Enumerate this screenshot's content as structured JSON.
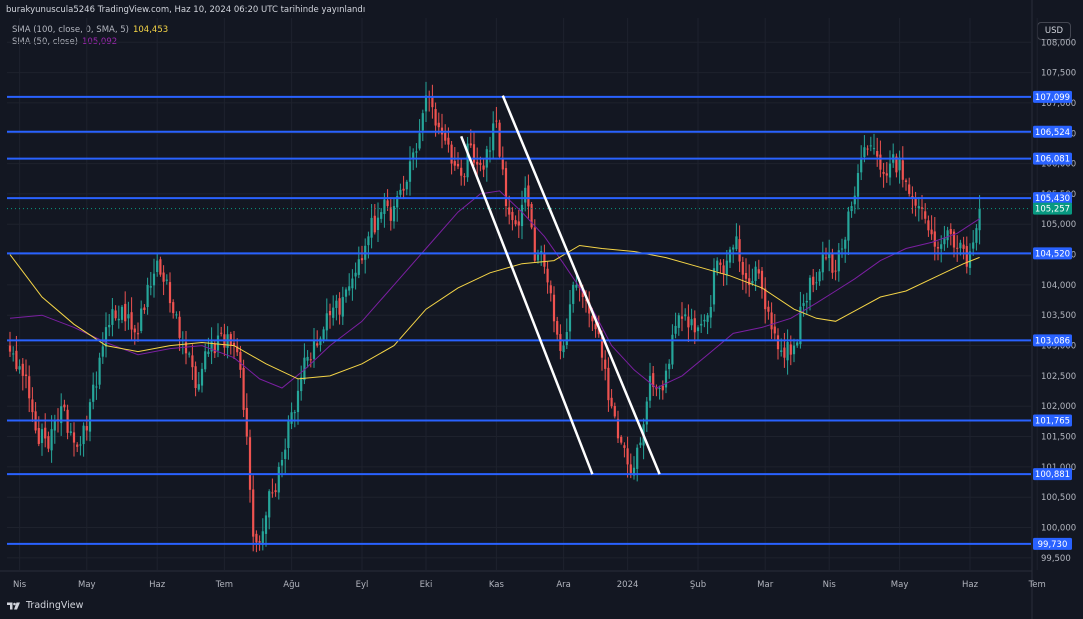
{
  "header": {
    "publish_line": "burakyunuscula5246 TradingView.com, Haz 10, 2024 06:20 UTC tarihinde yayınlandı"
  },
  "legend": {
    "sma100_label": "SMA (100, close, 0, SMA, 5)",
    "sma100_value": "104,453",
    "sma50_label": "SMA (50, close)",
    "sma50_value": "105,092"
  },
  "currency": "USD",
  "brand": "TradingView",
  "colors": {
    "background": "#131722",
    "up": "#26a69a",
    "down": "#ef5350",
    "level_line": "#2962ff",
    "level_tag": "#2962ff",
    "last_price_tag": "#089981",
    "sma100": "#f5d547",
    "sma50": "#7b1fa2",
    "trend_lines": "#ffffff"
  },
  "chart_data": {
    "type": "candlestick",
    "symbol_unit": "USD",
    "ylim": [
      99.3,
      108.4
    ],
    "y_ticks": [
      {
        "v": 99.5,
        "label": "99,500"
      },
      {
        "v": 100.0,
        "label": "100,000"
      },
      {
        "v": 100.5,
        "label": "100,500"
      },
      {
        "v": 101.0,
        "label": "101,000"
      },
      {
        "v": 101.5,
        "label": "101,500"
      },
      {
        "v": 102.0,
        "label": "102,000"
      },
      {
        "v": 102.5,
        "label": "102,500"
      },
      {
        "v": 103.0,
        "label": "103,000"
      },
      {
        "v": 103.5,
        "label": "103,500"
      },
      {
        "v": 104.0,
        "label": "104,000"
      },
      {
        "v": 104.5,
        "label": "104,500"
      },
      {
        "v": 105.0,
        "label": "105,000"
      },
      {
        "v": 105.5,
        "label": "105,500"
      },
      {
        "v": 106.0,
        "label": "106,000"
      },
      {
        "v": 106.5,
        "label": "106,500"
      },
      {
        "v": 107.0,
        "label": "107,000"
      },
      {
        "v": 107.5,
        "label": "107,500"
      },
      {
        "v": 108.0,
        "label": "108,000"
      }
    ],
    "x_labels": [
      {
        "label": "Nis",
        "bar": 3
      },
      {
        "label": "May",
        "bar": 24
      },
      {
        "label": "Haz",
        "bar": 46
      },
      {
        "label": "Tem",
        "bar": 67
      },
      {
        "label": "Ağu",
        "bar": 88
      },
      {
        "label": "Eyl",
        "bar": 110
      },
      {
        "label": "Eki",
        "bar": 130
      },
      {
        "label": "Kas",
        "bar": 152
      },
      {
        "label": "Ara",
        "bar": 173
      },
      {
        "label": "2024",
        "bar": 193
      },
      {
        "label": "Şub",
        "bar": 215
      },
      {
        "label": "Mar",
        "bar": 236
      },
      {
        "label": "Nis",
        "bar": 256
      },
      {
        "label": "May",
        "bar": 278
      },
      {
        "label": "Haz",
        "bar": 300
      },
      {
        "label": "Tem",
        "bar": 321
      }
    ],
    "levels": [
      {
        "value": 107.099,
        "label": "107,099"
      },
      {
        "value": 106.524,
        "label": "106,524"
      },
      {
        "value": 106.081,
        "label": "106,081"
      },
      {
        "value": 105.43,
        "label": "105,430"
      },
      {
        "value": 104.52,
        "label": "104,520"
      },
      {
        "value": 103.086,
        "label": "103,086"
      },
      {
        "value": 101.765,
        "label": "101,765"
      },
      {
        "value": 100.881,
        "label": "100,881"
      },
      {
        "value": 99.73,
        "label": "99,730"
      }
    ],
    "last_price": {
      "value": 105.257,
      "label": "105,257"
    },
    "trend_lines": [
      {
        "from": {
          "bar": 141,
          "price": 106.45
        },
        "to": {
          "bar": 182,
          "price": 100.88
        }
      },
      {
        "from": {
          "bar": 154,
          "price": 107.12
        },
        "to": {
          "bar": 203,
          "price": 100.88
        }
      }
    ],
    "anchors": [
      [
        0,
        102.9
      ],
      [
        4,
        102.5
      ],
      [
        8,
        101.6
      ],
      [
        12,
        101.3
      ],
      [
        16,
        102.0
      ],
      [
        20,
        101.4
      ],
      [
        24,
        101.6
      ],
      [
        28,
        102.8
      ],
      [
        32,
        103.6
      ],
      [
        36,
        103.4
      ],
      [
        40,
        103.2
      ],
      [
        43,
        104.0
      ],
      [
        46,
        104.4
      ],
      [
        50,
        103.7
      ],
      [
        54,
        103.1
      ],
      [
        58,
        102.3
      ],
      [
        62,
        102.9
      ],
      [
        66,
        103.2
      ],
      [
        70,
        103.0
      ],
      [
        72,
        102.6
      ],
      [
        74,
        101.5
      ],
      [
        76,
        99.85
      ],
      [
        78,
        99.75
      ],
      [
        80,
        100.2
      ],
      [
        84,
        101.0
      ],
      [
        88,
        101.9
      ],
      [
        92,
        102.8
      ],
      [
        96,
        103.0
      ],
      [
        100,
        103.5
      ],
      [
        104,
        103.8
      ],
      [
        108,
        104.2
      ],
      [
        112,
        104.8
      ],
      [
        116,
        105.2
      ],
      [
        120,
        105.3
      ],
      [
        124,
        105.7
      ],
      [
        128,
        106.5
      ],
      [
        131,
        107.1
      ],
      [
        134,
        106.6
      ],
      [
        138,
        106.0
      ],
      [
        141,
        105.8
      ],
      [
        144,
        106.3
      ],
      [
        148,
        105.9
      ],
      [
        152,
        106.7
      ],
      [
        155,
        105.3
      ],
      [
        158,
        105.0
      ],
      [
        161,
        105.6
      ],
      [
        164,
        104.4
      ],
      [
        167,
        104.3
      ],
      [
        170,
        103.4
      ],
      [
        173,
        103.0
      ],
      [
        176,
        104.0
      ],
      [
        179,
        103.8
      ],
      [
        182,
        103.4
      ],
      [
        185,
        102.8
      ],
      [
        188,
        102.0
      ],
      [
        191,
        101.4
      ],
      [
        194,
        100.9
      ],
      [
        197,
        101.4
      ],
      [
        200,
        102.5
      ],
      [
        203,
        102.3
      ],
      [
        206,
        102.7
      ],
      [
        209,
        103.5
      ],
      [
        212,
        103.3
      ],
      [
        215,
        103.3
      ],
      [
        218,
        103.5
      ],
      [
        221,
        104.4
      ],
      [
        224,
        104.4
      ],
      [
        227,
        104.8
      ],
      [
        230,
        104.1
      ],
      [
        233,
        104.3
      ],
      [
        236,
        103.6
      ],
      [
        239,
        103.2
      ],
      [
        242,
        102.8
      ],
      [
        245,
        103.0
      ],
      [
        248,
        103.7
      ],
      [
        251,
        104.0
      ],
      [
        254,
        104.5
      ],
      [
        257,
        104.2
      ],
      [
        260,
        104.6
      ],
      [
        263,
        105.3
      ],
      [
        266,
        106.1
      ],
      [
        269,
        106.3
      ],
      [
        272,
        105.9
      ],
      [
        275,
        106.0
      ],
      [
        278,
        106.1
      ],
      [
        281,
        105.5
      ],
      [
        284,
        105.3
      ],
      [
        287,
        104.9
      ],
      [
        290,
        104.6
      ],
      [
        293,
        104.9
      ],
      [
        296,
        104.6
      ],
      [
        299,
        104.3
      ],
      [
        301,
        104.7
      ],
      [
        303,
        105.26
      ]
    ],
    "sma100_path": [
      [
        0,
        104.5
      ],
      [
        10,
        103.8
      ],
      [
        20,
        103.35
      ],
      [
        30,
        103.0
      ],
      [
        40,
        102.9
      ],
      [
        50,
        103.0
      ],
      [
        60,
        103.05
      ],
      [
        70,
        103.0
      ],
      [
        80,
        102.7
      ],
      [
        90,
        102.45
      ],
      [
        100,
        102.5
      ],
      [
        110,
        102.7
      ],
      [
        120,
        103.0
      ],
      [
        130,
        103.6
      ],
      [
        140,
        103.95
      ],
      [
        150,
        104.2
      ],
      [
        160,
        104.35
      ],
      [
        170,
        104.4
      ],
      [
        178,
        104.65
      ],
      [
        185,
        104.6
      ],
      [
        195,
        104.55
      ],
      [
        205,
        104.45
      ],
      [
        215,
        104.3
      ],
      [
        225,
        104.15
      ],
      [
        235,
        103.95
      ],
      [
        245,
        103.6
      ],
      [
        252,
        103.45
      ],
      [
        258,
        103.4
      ],
      [
        265,
        103.6
      ],
      [
        272,
        103.8
      ],
      [
        280,
        103.9
      ],
      [
        290,
        104.15
      ],
      [
        298,
        104.35
      ],
      [
        303,
        104.453
      ]
    ],
    "sma50_path": [
      [
        0,
        103.45
      ],
      [
        10,
        103.5
      ],
      [
        20,
        103.3
      ],
      [
        30,
        103.05
      ],
      [
        40,
        102.85
      ],
      [
        50,
        102.95
      ],
      [
        60,
        103.0
      ],
      [
        70,
        102.8
      ],
      [
        78,
        102.45
      ],
      [
        85,
        102.3
      ],
      [
        92,
        102.6
      ],
      [
        100,
        103.0
      ],
      [
        110,
        103.4
      ],
      [
        120,
        104.0
      ],
      [
        130,
        104.6
      ],
      [
        140,
        105.2
      ],
      [
        147,
        105.5
      ],
      [
        153,
        105.55
      ],
      [
        160,
        105.2
      ],
      [
        167,
        104.8
      ],
      [
        173,
        104.35
      ],
      [
        180,
        103.8
      ],
      [
        188,
        103.0
      ],
      [
        195,
        102.6
      ],
      [
        202,
        102.3
      ],
      [
        210,
        102.5
      ],
      [
        218,
        102.85
      ],
      [
        226,
        103.2
      ],
      [
        235,
        103.3
      ],
      [
        244,
        103.45
      ],
      [
        252,
        103.7
      ],
      [
        258,
        103.9
      ],
      [
        264,
        104.1
      ],
      [
        272,
        104.4
      ],
      [
        280,
        104.6
      ],
      [
        288,
        104.7
      ],
      [
        296,
        104.85
      ],
      [
        303,
        105.092
      ]
    ]
  }
}
